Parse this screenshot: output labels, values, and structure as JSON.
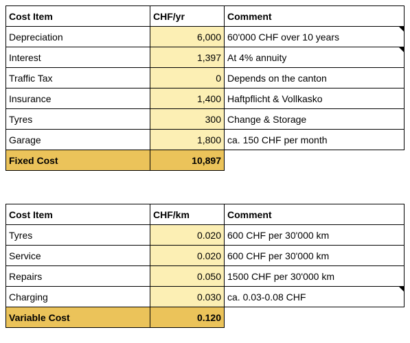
{
  "fixed_table": {
    "headers": [
      "Cost Item",
      "CHF/yr",
      "Comment"
    ],
    "rows": [
      {
        "item": "Depreciation",
        "value": "6,000",
        "comment": "60'000 CHF over 10 years",
        "has_note": true
      },
      {
        "item": "Interest",
        "value": "1,397",
        "comment": "At 4% annuity",
        "has_note": true
      },
      {
        "item": "Traffic Tax",
        "value": "0",
        "comment": "Depends on the canton",
        "has_note": false
      },
      {
        "item": "Insurance",
        "value": "1,400",
        "comment": "Haftpflicht & Vollkasko",
        "has_note": false
      },
      {
        "item": "Tyres",
        "value": "300",
        "comment": "Change & Storage",
        "has_note": false
      },
      {
        "item": "Garage",
        "value": "1,800",
        "comment": "ca. 150 CHF per month",
        "has_note": false
      }
    ],
    "total": {
      "label": "Fixed Cost",
      "value": "10,897"
    }
  },
  "variable_table": {
    "headers": [
      "Cost Item",
      "CHF/km",
      "Comment"
    ],
    "rows": [
      {
        "item": "Tyres",
        "value": "0.020",
        "comment": "600 CHF per 30'000 km",
        "has_note": false
      },
      {
        "item": "Service",
        "value": "0.020",
        "comment": "600 CHF per 30'000 km",
        "has_note": false
      },
      {
        "item": "Repairs",
        "value": "0.050",
        "comment": "1500 CHF per 30'000 km",
        "has_note": false
      },
      {
        "item": "Charging",
        "value": "0.030",
        "comment": "ca. 0.03-0.08 CHF",
        "has_note": true
      }
    ],
    "total": {
      "label": "Variable Cost",
      "value": "0.120"
    }
  },
  "colors": {
    "value_cell": "#fcefb4",
    "total_cell": "#ebc35a",
    "border": "#000000"
  }
}
